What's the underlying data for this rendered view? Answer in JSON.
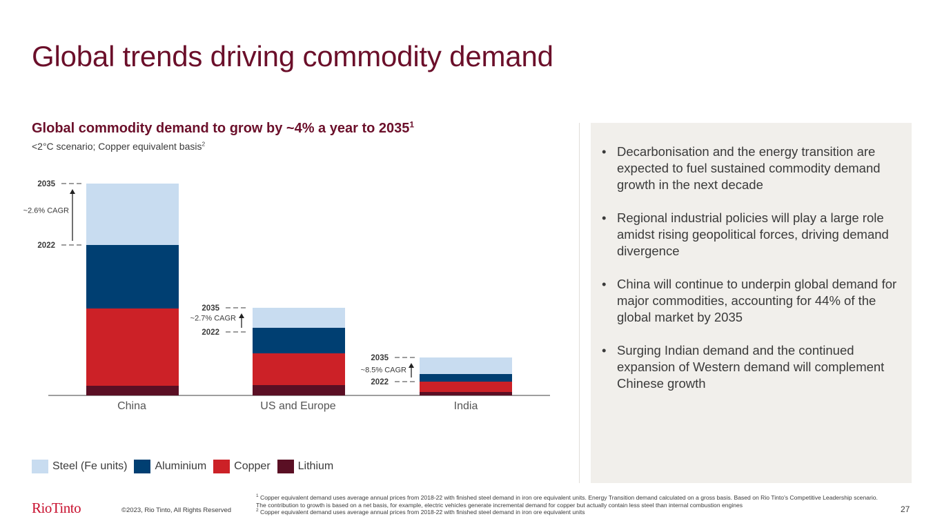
{
  "title": "Global trends driving commodity demand",
  "chart_header": {
    "title": "Global commodity demand to grow by ~4% a year to 2035",
    "title_sup": "1",
    "subtitle": "<2°C scenario; Copper equivalent basis",
    "subtitle_sup": "2"
  },
  "chart_data": {
    "type": "bar",
    "stacked": true,
    "categories": [
      "China",
      "US and Europe",
      "India"
    ],
    "series": [
      {
        "name": "Lithium",
        "color": "#5a0f24",
        "values": [
          14,
          15,
          5
        ]
      },
      {
        "name": "Copper",
        "color": "#cc2127",
        "values": [
          112,
          46,
          15
        ]
      },
      {
        "name": "Aluminium",
        "color": "#003f72",
        "values": [
          92,
          37,
          11
        ]
      },
      {
        "name": "Steel (Fe units)",
        "color": "#c8dcf0",
        "values": [
          89,
          29,
          24
        ]
      }
    ],
    "levels": [
      {
        "category": "China",
        "start_label": "2022",
        "end_label": "2035",
        "cagr": "~2.6% CAGR",
        "start_value": 218,
        "end_value": 307
      },
      {
        "category": "US and Europe",
        "start_label": "2022",
        "end_label": "2035",
        "cagr": "~2.7% CAGR",
        "start_value": 92,
        "end_value": 127
      },
      {
        "category": "India",
        "start_label": "2022",
        "end_label": "2035",
        "cagr": "~8.5% CAGR",
        "start_value": 20,
        "end_value": 55
      }
    ],
    "axis_unit_note": "values are relative copper-equivalent demand units estimated from bar heights; no numeric axis shown",
    "xlabel": "",
    "ylabel": "",
    "grid": false,
    "legend_position": "bottom-left"
  },
  "legend": [
    {
      "label": "Steel (Fe units)",
      "color": "#c8dcf0"
    },
    {
      "label": "Aluminium",
      "color": "#003f72"
    },
    {
      "label": "Copper",
      "color": "#cc2127"
    },
    {
      "label": "Lithium",
      "color": "#5a0f24"
    }
  ],
  "bullets": [
    "Decarbonisation and the energy transition are expected to fuel sustained commodity demand growth in the next decade",
    "Regional industrial policies will play a large role amidst rising geopolitical forces, driving demand divergence",
    "China will continue to underpin global demand for major commodities, accounting for 44% of the global market by 2035",
    "Surging Indian demand and the continued expansion of Western demand will complement Chinese growth"
  ],
  "bullet_glyph": "•",
  "footer": {
    "logo": "RioTinto",
    "copyright": "©2023, Rio Tinto, All Rights Reserved",
    "footnote1_num": "1",
    "footnote1": " Copper equivalent demand uses average annual prices from 2018-22 with finished steel demand in iron ore equivalent units. Energy Transition demand calculated on a gross basis. Based on Rio Tinto's Competitive Leadership scenario. The contribution to growth is based on a net basis, for example, electric vehicles generate incremental demand for copper but actually contain less steel than internal combustion engines",
    "footnote2_num": "2",
    "footnote2": " Copper equivalent demand uses average annual prices from 2018-22 with finished steel demand in iron ore equivalent units",
    "page_number": "27"
  }
}
